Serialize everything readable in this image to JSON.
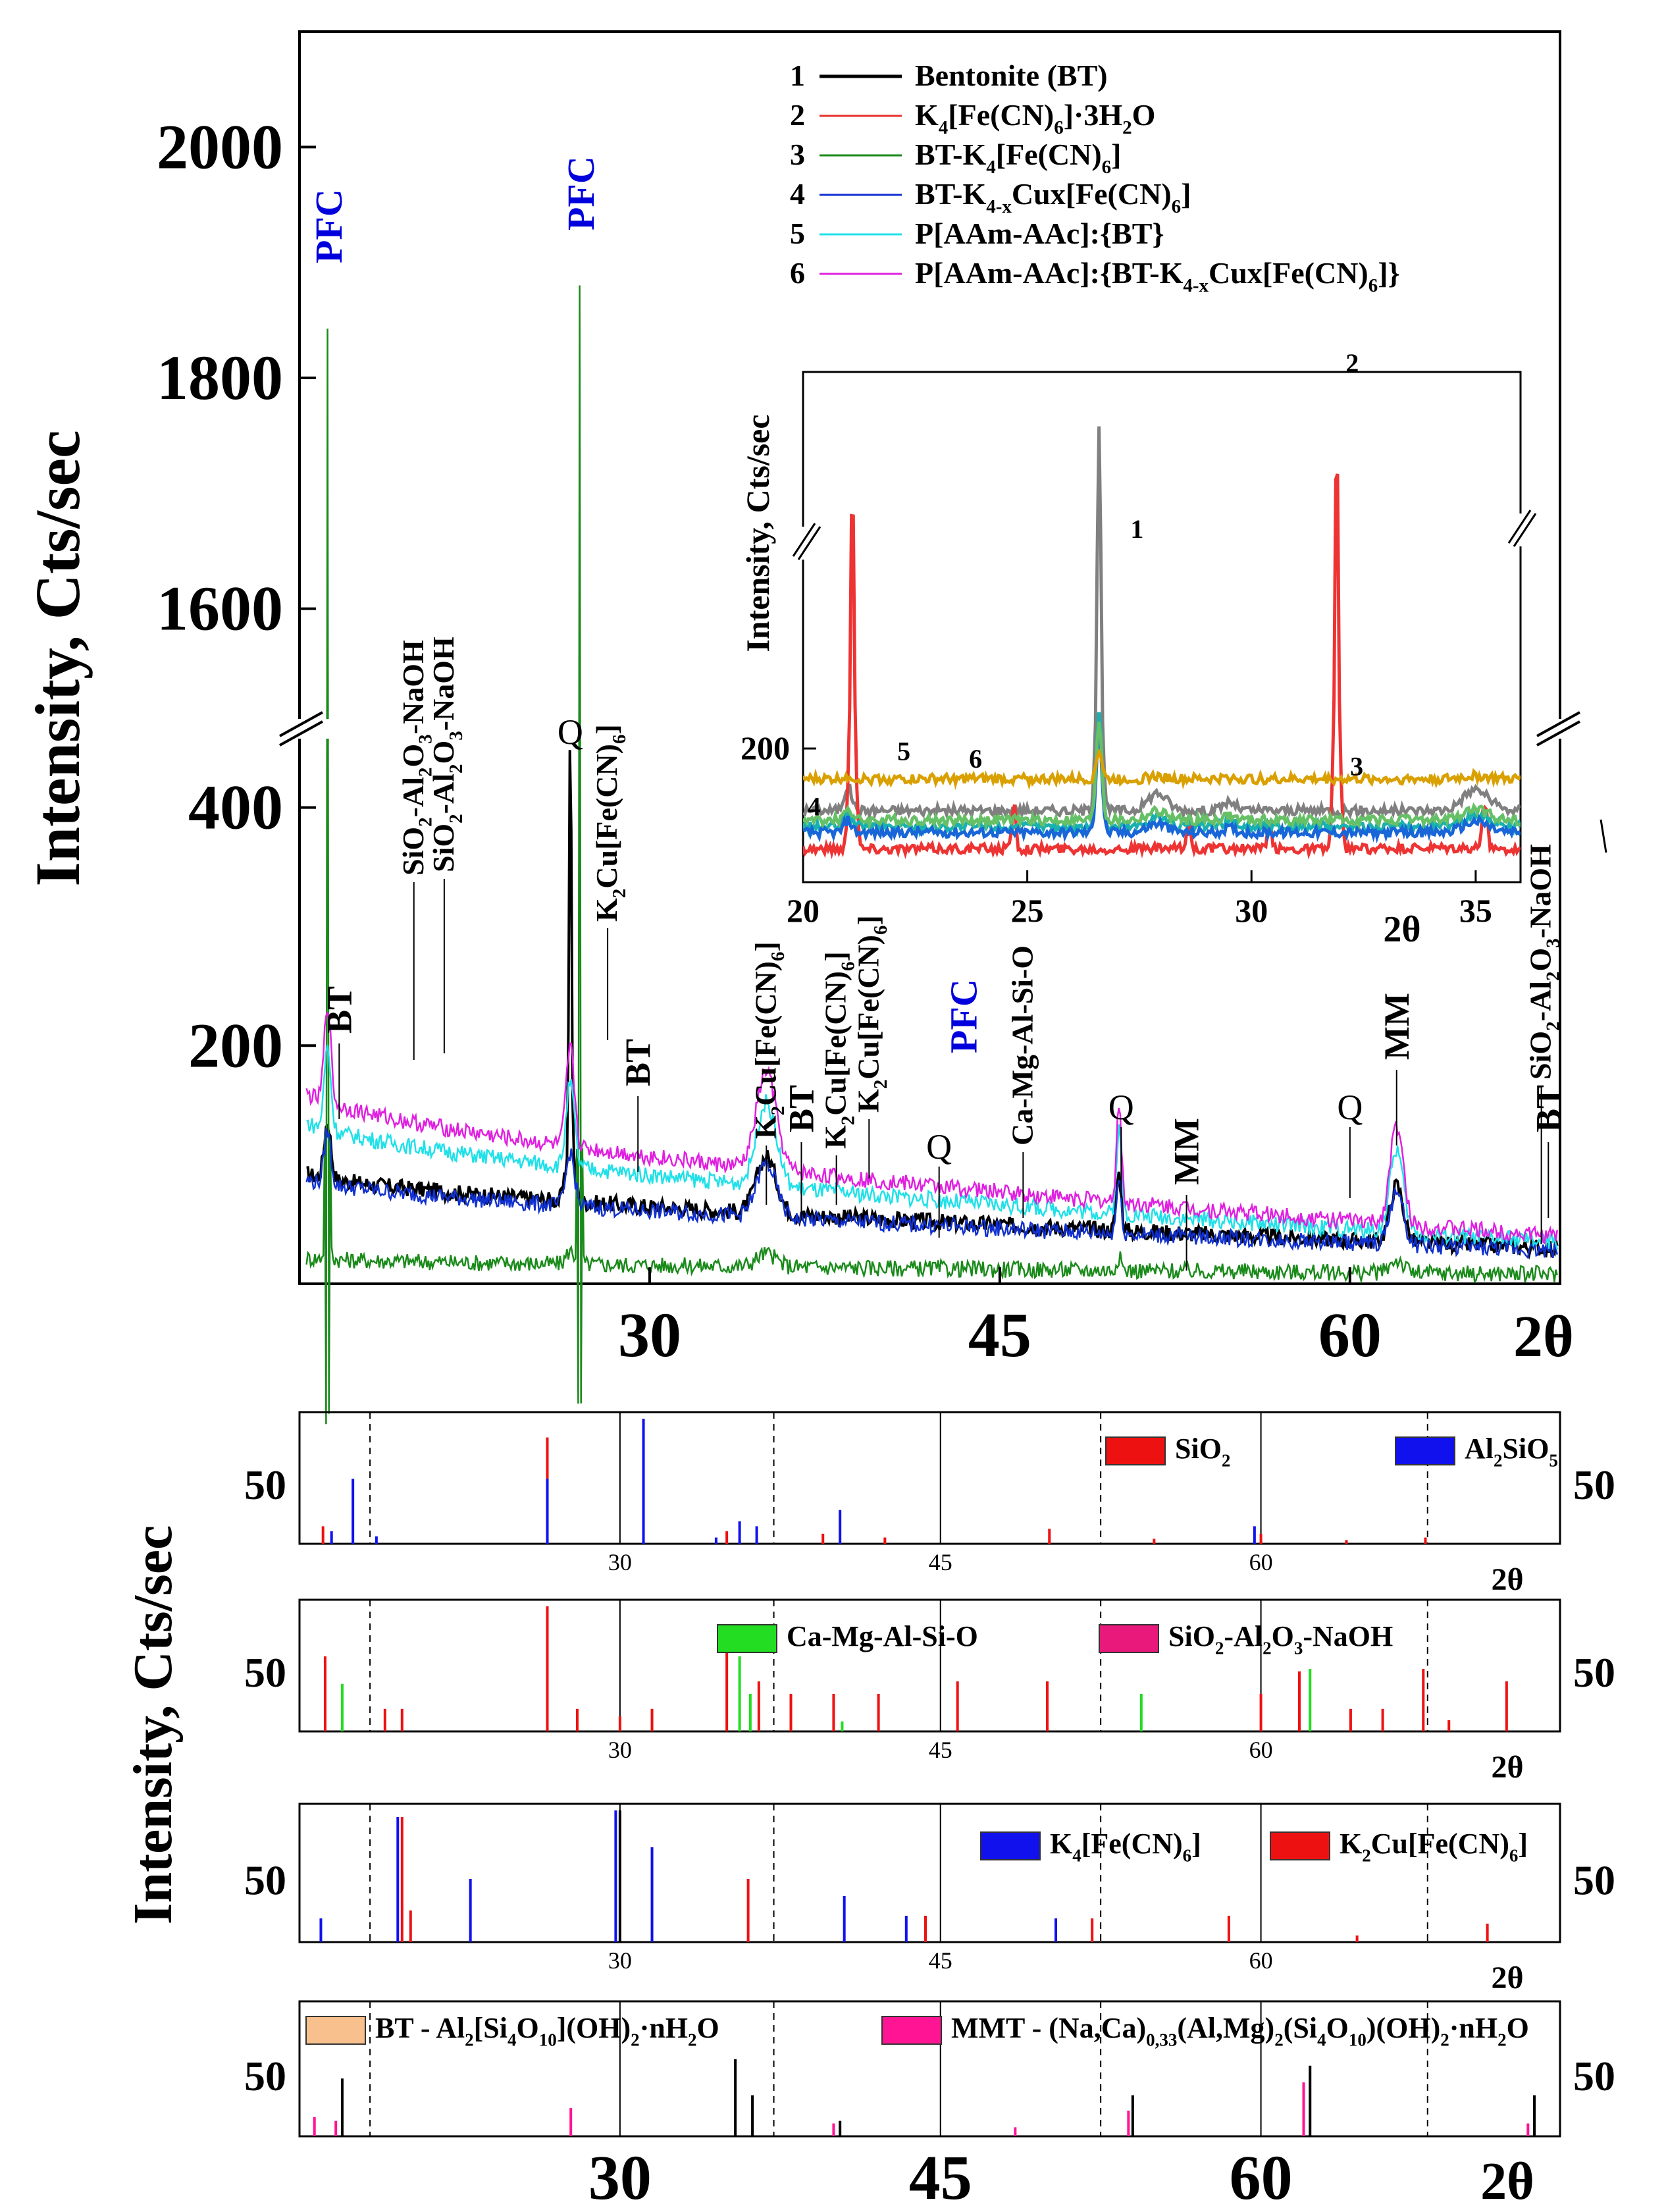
{
  "chart_data": [
    {
      "id": "main",
      "type": "line",
      "ylabel": "Intensity, Cts/sec",
      "xlabel_right": "2θ",
      "x_range": [
        15,
        69
      ],
      "y_segments": [
        {
          "name": "lower",
          "range": [
            0,
            470
          ]
        },
        {
          "name": "upper",
          "range": [
            1500,
            2100
          ]
        }
      ],
      "x_ticks": [
        "30",
        "45",
        "60"
      ],
      "x_tick_values": [
        30,
        45,
        60
      ],
      "y_ticks_lower": [
        "200",
        "400"
      ],
      "y_tick_values_lower": [
        200,
        400
      ],
      "y_ticks_upper": [
        "1600",
        "1800",
        "2000"
      ],
      "y_tick_values_upper": [
        1600,
        1800,
        2000
      ],
      "legend": [
        {
          "num": "1",
          "text": "Bentonite (BT)",
          "color": "#000000"
        },
        {
          "num": "2",
          "text": "K4[Fe(CN)6]·3H2O",
          "color": "#e8302a"
        },
        {
          "num": "3",
          "text": "BT-K4[Fe(CN)6]",
          "color": "#1a8a1a"
        },
        {
          "num": "4",
          "text": "BT-K4-xCux[Fe(CN)6]",
          "color": "#1030d0"
        },
        {
          "num": "5",
          "text": "P[AAm-AAc]:{BT}",
          "color": "#20e0e8"
        },
        {
          "num": "6",
          "text": "P[AAm-AAc]:{BT-K4-xCux[Fe(CN)6]}",
          "color": "#e020e0"
        }
      ],
      "series_baselines": [
        {
          "name": "BT",
          "color": "#000000",
          "start": 95,
          "end": 30
        },
        {
          "name": "BT-K4[Fe(CN)6]",
          "color": "#1a8a1a",
          "start": 22,
          "end": 8
        },
        {
          "name": "BT-K4-xCux[Fe(CN)6]",
          "color": "#1030d0",
          "start": 90,
          "end": 28
        },
        {
          "name": "P[AAm-AAc]:{BT}",
          "color": "#20e0e8",
          "start": 140,
          "end": 35
        },
        {
          "name": "P[AAm-AAc]:{BT-K4-xCux[Fe(CN)6]}",
          "color": "#e020e0",
          "start": 165,
          "end": 40
        }
      ],
      "major_peaks": [
        {
          "series": "BT-K4[Fe(CN)6]",
          "x": 16.2,
          "y": 1830
        },
        {
          "series": "BT-K4[Fe(CN)6]",
          "x": 27.0,
          "y": 1880
        },
        {
          "series": "BT",
          "x": 26.6,
          "y": 460
        }
      ],
      "annotations": [
        {
          "text": "PFC",
          "x": 16.3,
          "color": "#0000dd"
        },
        {
          "text": "PFC",
          "x": 27.1,
          "color": "#0000dd"
        },
        {
          "text": "Q",
          "x": 26.6,
          "color": "#000000"
        },
        {
          "text": "BT",
          "x": 16.7,
          "color": "#000000"
        },
        {
          "text": "SiO2-Al2O3-NaOH",
          "x": 19.9,
          "color": "#000000"
        },
        {
          "text": "SiO2-Al2O3-NaOH",
          "x": 21.2,
          "color": "#000000"
        },
        {
          "text": "K2Cu[Fe(CN)6]",
          "x": 28.2,
          "color": "#000000"
        },
        {
          "text": "BT",
          "x": 29.5,
          "color": "#000000"
        },
        {
          "text": "K2Cu[Fe(CN)6]",
          "x": 35.0,
          "color": "#000000"
        },
        {
          "text": "BT",
          "x": 36.5,
          "color": "#000000"
        },
        {
          "text": "K2Cu[Fe(CN)6]",
          "x": 38.0,
          "color": "#000000"
        },
        {
          "text": "K2Cu[Fe(CN)6]",
          "x": 39.4,
          "color": "#000000"
        },
        {
          "text": "Q",
          "x": 42.4,
          "color": "#000000"
        },
        {
          "text": "PFC",
          "x": 43.5,
          "color": "#0000dd"
        },
        {
          "text": "Ca-Mg-Al-Si-O",
          "x": 46.0,
          "color": "#000000"
        },
        {
          "text": "Q",
          "x": 50.2,
          "color": "#000000"
        },
        {
          "text": "MM",
          "x": 53.0,
          "color": "#000000"
        },
        {
          "text": "Q",
          "x": 60.0,
          "color": "#000000"
        },
        {
          "text": "MM",
          "x": 62.0,
          "color": "#000000"
        },
        {
          "text": "SiO2-Al2O3-NaOH",
          "x": 68.2,
          "color": "#000000"
        },
        {
          "text": "BT",
          "x": 68.5,
          "color": "#000000"
        }
      ]
    },
    {
      "id": "inset",
      "type": "line",
      "ylabel": "Intensity, Cts/sec",
      "xlabel_right": "2θ",
      "x_range": [
        20,
        36
      ],
      "y_range": [
        60,
        260
      ],
      "x_ticks": [
        "20",
        "25",
        "30",
        "35"
      ],
      "x_tick_values": [
        20,
        25,
        30,
        35
      ],
      "y_ticks": [
        "200"
      ],
      "y_tick_values": [
        200
      ],
      "series_labels": [
        {
          "text": "1",
          "x": 27.3,
          "y": 308
        },
        {
          "text": "2",
          "x": 32.1,
          "y": 360
        },
        {
          "text": "3",
          "x": 32.2,
          "y": 172
        },
        {
          "text": "4",
          "x": 20.1,
          "y": 130
        },
        {
          "text": "5",
          "x": 22.1,
          "y": 188
        },
        {
          "text": "6",
          "x": 23.7,
          "y": 180
        }
      ],
      "series": [
        {
          "name": "1",
          "color": "#808080",
          "base": 135,
          "peak_x": 26.6,
          "peak_y": 345
        },
        {
          "name": "2",
          "color": "#ee3333",
          "base": 95,
          "peak_x": 21.1,
          "peak_y": 330
        },
        {
          "name": "3",
          "color": "#18b0b0",
          "base": 118,
          "peak_x": 26.6,
          "peak_y": 240
        },
        {
          "name": "4",
          "color": "#1866d8",
          "base": 112,
          "peak_x": 26.6,
          "peak_y": 220
        },
        {
          "name": "5",
          "color": "#66c066",
          "base": 125,
          "peak_x": 26.6,
          "peak_y": 230
        },
        {
          "name": "6",
          "color": "#d9a000",
          "base": 168,
          "peak_x": 26.6,
          "peak_y": 198
        }
      ]
    },
    {
      "id": "ref1",
      "type": "bar",
      "ylabel": "Intensity, Cts/sec",
      "xlabel_right": "2θ",
      "x_ticks": [
        "30",
        "45",
        "60"
      ],
      "x_tick_values": [
        30,
        45,
        60
      ],
      "y_tick": "50",
      "y_tick_value": 50,
      "legend": [
        {
          "text": "SiO2",
          "color": "#ee1111"
        },
        {
          "text": "Al2SiO5",
          "color": "#1111ee"
        }
      ],
      "sticks": [
        {
          "x": 16.1,
          "h": 14,
          "c": "#ee1111"
        },
        {
          "x": 16.5,
          "h": 10,
          "c": "#1111ee"
        },
        {
          "x": 17.5,
          "h": 52,
          "c": "#1111ee"
        },
        {
          "x": 18.6,
          "h": 6,
          "c": "#1111ee"
        },
        {
          "x": 26.6,
          "h": 85,
          "c": "#ee1111"
        },
        {
          "x": 26.6,
          "h": 52,
          "c": "#1111ee"
        },
        {
          "x": 31.1,
          "h": 100,
          "c": "#1111ee"
        },
        {
          "x": 34.5,
          "h": 5,
          "c": "#1111ee"
        },
        {
          "x": 35.0,
          "h": 10,
          "c": "#ee1111"
        },
        {
          "x": 35.6,
          "h": 18,
          "c": "#1111ee"
        },
        {
          "x": 36.4,
          "h": 14,
          "c": "#1111ee"
        },
        {
          "x": 39.5,
          "h": 8,
          "c": "#ee1111"
        },
        {
          "x": 40.3,
          "h": 27,
          "c": "#1111ee"
        },
        {
          "x": 42.4,
          "h": 5,
          "c": "#ee1111"
        },
        {
          "x": 50.1,
          "h": 12,
          "c": "#ee1111"
        },
        {
          "x": 55.0,
          "h": 4,
          "c": "#ee1111"
        },
        {
          "x": 59.7,
          "h": 14,
          "c": "#1111ee"
        },
        {
          "x": 60.0,
          "h": 8,
          "c": "#ee1111"
        },
        {
          "x": 64.0,
          "h": 3,
          "c": "#ee1111"
        },
        {
          "x": 67.7,
          "h": 5,
          "c": "#ee1111"
        }
      ]
    },
    {
      "id": "ref2",
      "type": "bar",
      "xlabel_right": "2θ",
      "x_ticks": [
        "30",
        "45",
        "60"
      ],
      "x_tick_values": [
        30,
        45,
        60
      ],
      "y_tick": "50",
      "y_tick_value": 50,
      "legend": [
        {
          "text": "Ca-Mg-Al-Si-O",
          "color": "#22dd22"
        },
        {
          "text": "SiO2-Al2O3-NaOH",
          "color": "#e8197a"
        }
      ],
      "sticks": [
        {
          "x": 16.2,
          "h": 60,
          "c": "#ee1111"
        },
        {
          "x": 17.0,
          "h": 38,
          "c": "#22dd22"
        },
        {
          "x": 19.0,
          "h": 18,
          "c": "#ee1111"
        },
        {
          "x": 19.8,
          "h": 18,
          "c": "#ee1111"
        },
        {
          "x": 26.6,
          "h": 100,
          "c": "#ee1111"
        },
        {
          "x": 28.0,
          "h": 18,
          "c": "#ee1111"
        },
        {
          "x": 30.0,
          "h": 12,
          "c": "#ee1111"
        },
        {
          "x": 31.5,
          "h": 18,
          "c": "#ee1111"
        },
        {
          "x": 35.0,
          "h": 82,
          "c": "#ee1111"
        },
        {
          "x": 35.6,
          "h": 60,
          "c": "#22dd22"
        },
        {
          "x": 36.1,
          "h": 30,
          "c": "#22dd22"
        },
        {
          "x": 36.5,
          "h": 40,
          "c": "#ee1111"
        },
        {
          "x": 38.0,
          "h": 30,
          "c": "#ee1111"
        },
        {
          "x": 40.0,
          "h": 30,
          "c": "#ee1111"
        },
        {
          "x": 40.4,
          "h": 8,
          "c": "#22dd22"
        },
        {
          "x": 42.1,
          "h": 30,
          "c": "#ee1111"
        },
        {
          "x": 45.8,
          "h": 40,
          "c": "#ee1111"
        },
        {
          "x": 50.0,
          "h": 40,
          "c": "#ee1111"
        },
        {
          "x": 54.4,
          "h": 30,
          "c": "#22dd22"
        },
        {
          "x": 60.0,
          "h": 30,
          "c": "#ee1111"
        },
        {
          "x": 61.8,
          "h": 48,
          "c": "#ee1111"
        },
        {
          "x": 62.3,
          "h": 50,
          "c": "#22dd22"
        },
        {
          "x": 64.2,
          "h": 18,
          "c": "#ee1111"
        },
        {
          "x": 65.7,
          "h": 18,
          "c": "#ee1111"
        },
        {
          "x": 67.6,
          "h": 50,
          "c": "#ee1111"
        },
        {
          "x": 68.8,
          "h": 9,
          "c": "#ee1111"
        },
        {
          "x": 71.5,
          "h": 40,
          "c": "#ee1111"
        }
      ]
    },
    {
      "id": "ref3",
      "type": "bar",
      "xlabel_right": "2θ",
      "x_ticks": [
        "30",
        "45",
        "60"
      ],
      "x_tick_values": [
        30,
        45,
        60
      ],
      "y_tick": "50",
      "y_tick_value": 50,
      "legend": [
        {
          "text": "K4[Fe(CN)6]",
          "color": "#1111ee"
        },
        {
          "text": "K2Cu[Fe(CN)6]",
          "color": "#ee1111"
        }
      ],
      "sticks": [
        {
          "x": 16.0,
          "h": 18,
          "c": "#1111ee"
        },
        {
          "x": 19.6,
          "h": 95,
          "c": "#1111ee"
        },
        {
          "x": 19.8,
          "h": 95,
          "c": "#ee1111"
        },
        {
          "x": 20.2,
          "h": 24,
          "c": "#ee1111"
        },
        {
          "x": 23.0,
          "h": 48,
          "c": "#1111ee"
        },
        {
          "x": 29.8,
          "h": 100,
          "c": "#1111ee"
        },
        {
          "x": 30.0,
          "h": 100,
          "c": "#000000"
        },
        {
          "x": 31.5,
          "h": 72,
          "c": "#1111ee"
        },
        {
          "x": 36.0,
          "h": 48,
          "c": "#ee1111"
        },
        {
          "x": 40.5,
          "h": 35,
          "c": "#1111ee"
        },
        {
          "x": 43.4,
          "h": 20,
          "c": "#1111ee"
        },
        {
          "x": 44.3,
          "h": 20,
          "c": "#ee1111"
        },
        {
          "x": 50.4,
          "h": 18,
          "c": "#1111ee"
        },
        {
          "x": 52.1,
          "h": 18,
          "c": "#ee1111"
        },
        {
          "x": 58.5,
          "h": 20,
          "c": "#ee1111"
        },
        {
          "x": 64.5,
          "h": 5,
          "c": "#ee1111"
        },
        {
          "x": 70.6,
          "h": 14,
          "c": "#ee1111"
        }
      ]
    },
    {
      "id": "ref4",
      "type": "bar",
      "xlabel_right": "2θ",
      "x_ticks": [
        "30",
        "45",
        "60"
      ],
      "x_tick_values": [
        30,
        45,
        60
      ],
      "y_tick": "50",
      "y_tick_value": 50,
      "legend": [
        {
          "text": "BT - Al2[Si4O10](OH)2·nH2O",
          "color": "#f8c08c"
        },
        {
          "text": "MMT - (Na,Ca)0,33(Al,Mg)2(Si4O10)(OH)2·nH2O",
          "color": "#ff1493"
        }
      ],
      "sticks": [
        {
          "x": 15.7,
          "h": 15,
          "c": "#ff1493"
        },
        {
          "x": 16.7,
          "h": 12,
          "c": "#ff1493"
        },
        {
          "x": 17.0,
          "h": 45,
          "c": "#000000"
        },
        {
          "x": 27.7,
          "h": 22,
          "c": "#ff1493"
        },
        {
          "x": 35.4,
          "h": 60,
          "c": "#000000"
        },
        {
          "x": 36.2,
          "h": 32,
          "c": "#000000"
        },
        {
          "x": 40.0,
          "h": 10,
          "c": "#ff1493"
        },
        {
          "x": 40.3,
          "h": 12,
          "c": "#000000"
        },
        {
          "x": 48.5,
          "h": 7,
          "c": "#ff1493"
        },
        {
          "x": 53.8,
          "h": 20,
          "c": "#ff1493"
        },
        {
          "x": 54.0,
          "h": 32,
          "c": "#000000"
        },
        {
          "x": 62.0,
          "h": 42,
          "c": "#ff1493"
        },
        {
          "x": 62.3,
          "h": 55,
          "c": "#000000"
        },
        {
          "x": 72.5,
          "h": 10,
          "c": "#ff1493"
        },
        {
          "x": 72.8,
          "h": 32,
          "c": "#000000"
        }
      ]
    }
  ]
}
